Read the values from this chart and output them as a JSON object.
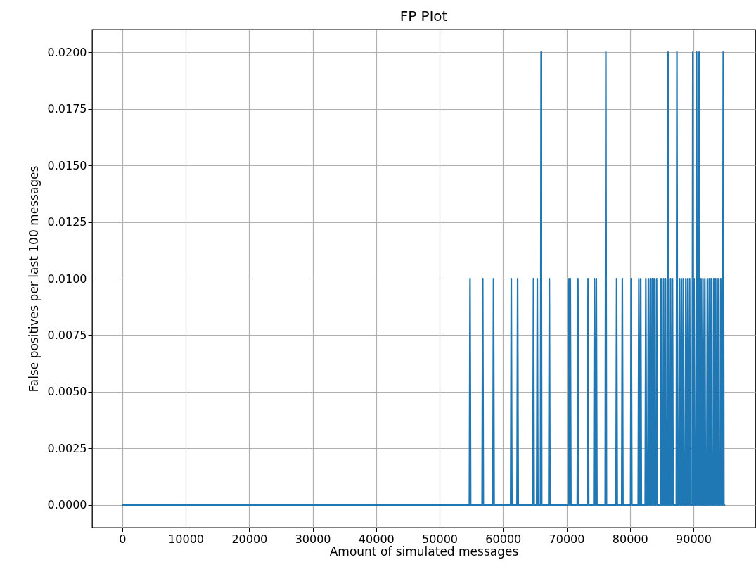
{
  "chart_data": {
    "type": "line",
    "title": "FP Plot",
    "xlabel": "Amount of simulated messages",
    "ylabel": "False positives per last 100 messages",
    "color": "#1f77b4",
    "x": [
      0,
      54700,
      54800,
      54900,
      56700,
      56800,
      56900,
      58400,
      58500,
      58600,
      61200,
      61300,
      61400,
      62200,
      62300,
      62400,
      64700,
      64800,
      64900,
      65300,
      65400,
      65500,
      65900,
      66000,
      66100,
      67200,
      67300,
      67400,
      70300,
      70400,
      70500,
      70500,
      70600,
      70700,
      71700,
      71800,
      71900,
      73300,
      73400,
      73500,
      74300,
      74400,
      74500,
      74600,
      74700,
      74800,
      76100,
      76200,
      76300,
      77800,
      77900,
      78000,
      78700,
      78800,
      78900,
      80100,
      80200,
      80300,
      81300,
      81400,
      81500,
      81600,
      81700,
      81800,
      82400,
      82500,
      82600,
      82800,
      82900,
      83000,
      83100,
      83200,
      83300,
      83400,
      83500,
      83600,
      83700,
      83800,
      83900,
      84100,
      84200,
      84300,
      84800,
      84900,
      85000,
      85200,
      85300,
      85400,
      85500,
      85600,
      85700,
      85900,
      86000,
      86100,
      86300,
      86400,
      86500,
      86600,
      86700,
      86800,
      87300,
      87400,
      87500,
      87700,
      87800,
      87900,
      88000,
      88100,
      88200,
      88300,
      88400,
      88500,
      88700,
      88800,
      88900,
      89000,
      89100,
      89200,
      89300,
      89400,
      89500,
      89800,
      89900,
      90000,
      90000,
      90100,
      90200,
      90400,
      90500,
      90600,
      90800,
      90900,
      91000,
      91100,
      91200,
      91300,
      91400,
      91500,
      91600,
      91700,
      91800,
      91900,
      92100,
      92200,
      92300,
      92400,
      92500,
      92600,
      92700,
      92800,
      92900,
      93100,
      93200,
      93300,
      93400,
      93500,
      93600,
      93800,
      93900,
      94000,
      94200,
      94300,
      94400,
      94600,
      94700,
      94800,
      95000
    ],
    "values": [
      0,
      0,
      0.01,
      0,
      0,
      0.01,
      0,
      0,
      0.01,
      0,
      0,
      0.01,
      0,
      0,
      0.01,
      0,
      0,
      0.01,
      0,
      0,
      0.01,
      0,
      0,
      0.02,
      0,
      0,
      0.01,
      0,
      0,
      0.01,
      0,
      0,
      0.01,
      0,
      0,
      0.01,
      0,
      0,
      0.01,
      0,
      0,
      0.01,
      0,
      0,
      0.01,
      0,
      0,
      0.02,
      0,
      0,
      0.01,
      0,
      0,
      0.01,
      0,
      0,
      0.01,
      0,
      0,
      0.01,
      0,
      0,
      0.01,
      0,
      0,
      0.01,
      0,
      0,
      0.01,
      0,
      0,
      0.01,
      0,
      0,
      0.01,
      0,
      0,
      0.01,
      0,
      0,
      0.01,
      0,
      0,
      0.01,
      0,
      0,
      0.01,
      0,
      0,
      0.01,
      0,
      0,
      0.02,
      0,
      0,
      0.01,
      0,
      0,
      0.01,
      0,
      0,
      0.02,
      0,
      0,
      0.01,
      0,
      0,
      0.01,
      0,
      0,
      0.01,
      0,
      0,
      0.01,
      0,
      0,
      0.01,
      0,
      0,
      0.01,
      0,
      0,
      0.02,
      0,
      0,
      0.01,
      0,
      0,
      0.02,
      0,
      0,
      0.02,
      0,
      0,
      0.01,
      0,
      0,
      0.01,
      0,
      0,
      0.01,
      0,
      0,
      0.01,
      0,
      0,
      0.01,
      0,
      0,
      0.01,
      0,
      0,
      0.01,
      0,
      0,
      0.01,
      0,
      0,
      0.01,
      0,
      0,
      0.01,
      0,
      0,
      0.02,
      0,
      0
    ],
    "xlim": [
      -4750,
      99750
    ],
    "ylim": [
      -0.001,
      0.021
    ],
    "xticks": [
      0,
      10000,
      20000,
      30000,
      40000,
      50000,
      60000,
      70000,
      80000,
      90000
    ],
    "yticks": [
      {
        "value": 0,
        "label": "0.0000"
      },
      {
        "value": 0.0025,
        "label": "0.0025"
      },
      {
        "value": 0.005,
        "label": "0.0050"
      },
      {
        "value": 0.0075,
        "label": "0.0075"
      },
      {
        "value": 0.01,
        "label": "0.0100"
      },
      {
        "value": 0.0125,
        "label": "0.0125"
      },
      {
        "value": 0.015,
        "label": "0.0150"
      },
      {
        "value": 0.0175,
        "label": "0.0175"
      },
      {
        "value": 0.02,
        "label": "0.0200"
      }
    ],
    "grid": true
  }
}
